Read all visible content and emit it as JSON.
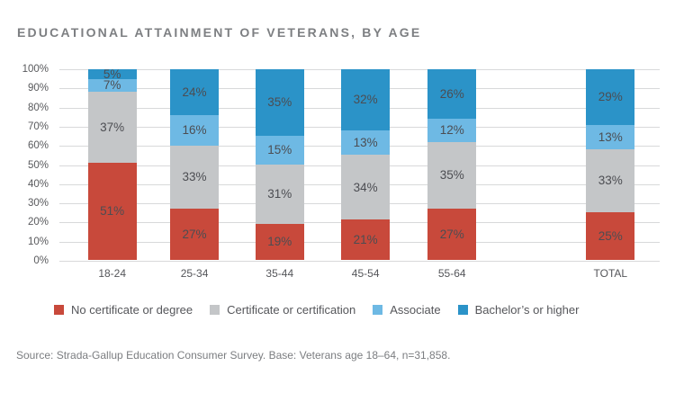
{
  "title": "EDUCATIONAL ATTAINMENT OF VETERANS, BY AGE",
  "source": "Source: Strada-Gallup Education Consumer Survey. Base: Veterans age 18–64, n=31,858.",
  "colors": {
    "red": "#c8493b",
    "gray": "#c4c6c8",
    "light_blue": "#6eb9e4",
    "dark_blue": "#2b93c8",
    "grid": "#d8d9da",
    "title_text": "#7d7f82",
    "axis_text": "#58595c",
    "value_label_text": "#4c4d52"
  },
  "chart_data": {
    "type": "bar",
    "stacked": true,
    "title": "EDUCATIONAL ATTAINMENT OF VETERANS, BY AGE",
    "xlabel": "",
    "ylabel": "",
    "ylim": [
      0,
      100
    ],
    "y_ticks": [
      "0%",
      "10%",
      "20%",
      "30%",
      "40%",
      "50%",
      "60%",
      "70%",
      "80%",
      "90%",
      "100%"
    ],
    "grid": true,
    "legend_position": "bottom",
    "value_suffix": "%",
    "categories": [
      "18-24",
      "25-34",
      "35-44",
      "45-54",
      "55-64",
      "TOTAL"
    ],
    "series": [
      {
        "name": "No certificate or degree",
        "color_key": "red",
        "values": [
          51,
          27,
          19,
          21,
          27,
          25
        ]
      },
      {
        "name": "Certificate or certification",
        "color_key": "gray",
        "values": [
          37,
          33,
          31,
          34,
          35,
          33
        ]
      },
      {
        "name": "Associate",
        "color_key": "light_blue",
        "values": [
          7,
          16,
          15,
          13,
          12,
          13
        ]
      },
      {
        "name": "Bachelor’s or higher",
        "color_key": "dark_blue",
        "values": [
          5,
          24,
          35,
          32,
          26,
          29
        ]
      }
    ]
  }
}
